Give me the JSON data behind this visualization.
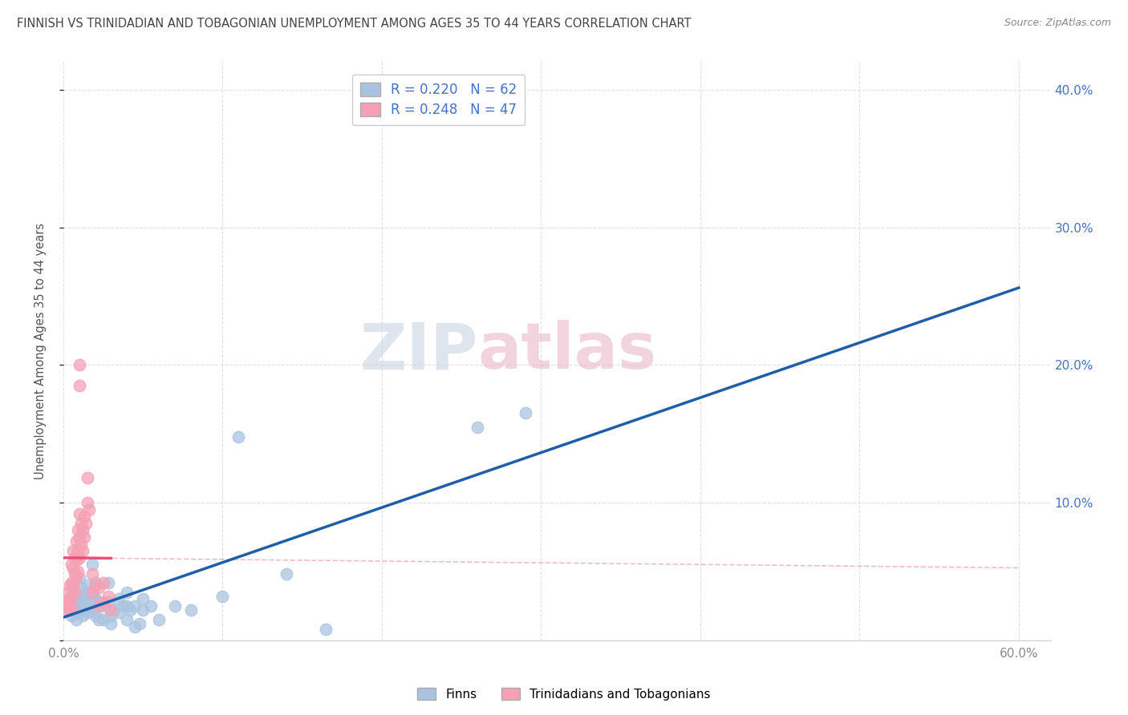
{
  "title": "FINNISH VS TRINIDADIAN AND TOBAGONIAN UNEMPLOYMENT AMONG AGES 35 TO 44 YEARS CORRELATION CHART",
  "source": "Source: ZipAtlas.com",
  "ylabel": "Unemployment Among Ages 35 to 44 years",
  "xlim": [
    0.0,
    0.62
  ],
  "ylim": [
    0.0,
    0.42
  ],
  "xticks": [
    0.0,
    0.1,
    0.2,
    0.3,
    0.4,
    0.5,
    0.6
  ],
  "yticks": [
    0.0,
    0.1,
    0.2,
    0.3,
    0.4
  ],
  "xticklabels_show": [
    "0.0%",
    "60.0%"
  ],
  "xticks_show_pos": [
    0.0,
    0.6
  ],
  "yticklabels_right": [
    "10.0%",
    "20.0%",
    "30.0%",
    "40.0%"
  ],
  "yticks_right_pos": [
    0.1,
    0.2,
    0.3,
    0.4
  ],
  "legend_labels": [
    "Finns",
    "Trinidadians and Tobagonians"
  ],
  "finn_R": "0.220",
  "finn_N": "62",
  "tnt_R": "0.248",
  "tnt_N": "47",
  "finn_color": "#aac4e0",
  "tnt_color": "#f5a0b5",
  "finn_line_color": "#1f5faa",
  "tnt_line_color": "#e8507a",
  "tnt_dash_color": "#e8a0b8",
  "finn_scatter": [
    [
      0.003,
      0.028
    ],
    [
      0.004,
      0.022
    ],
    [
      0.005,
      0.03
    ],
    [
      0.005,
      0.018
    ],
    [
      0.006,
      0.032
    ],
    [
      0.006,
      0.025
    ],
    [
      0.007,
      0.02
    ],
    [
      0.008,
      0.028
    ],
    [
      0.008,
      0.015
    ],
    [
      0.009,
      0.035
    ],
    [
      0.009,
      0.025
    ],
    [
      0.01,
      0.045
    ],
    [
      0.01,
      0.03
    ],
    [
      0.01,
      0.022
    ],
    [
      0.011,
      0.038
    ],
    [
      0.012,
      0.025
    ],
    [
      0.012,
      0.018
    ],
    [
      0.013,
      0.032
    ],
    [
      0.013,
      0.022
    ],
    [
      0.014,
      0.028
    ],
    [
      0.015,
      0.04
    ],
    [
      0.015,
      0.03
    ],
    [
      0.015,
      0.02
    ],
    [
      0.016,
      0.035
    ],
    [
      0.017,
      0.025
    ],
    [
      0.018,
      0.055
    ],
    [
      0.018,
      0.032
    ],
    [
      0.018,
      0.022
    ],
    [
      0.02,
      0.042
    ],
    [
      0.02,
      0.03
    ],
    [
      0.02,
      0.018
    ],
    [
      0.022,
      0.028
    ],
    [
      0.022,
      0.015
    ],
    [
      0.025,
      0.025
    ],
    [
      0.025,
      0.015
    ],
    [
      0.028,
      0.042
    ],
    [
      0.028,
      0.028
    ],
    [
      0.03,
      0.018
    ],
    [
      0.03,
      0.012
    ],
    [
      0.032,
      0.022
    ],
    [
      0.035,
      0.03
    ],
    [
      0.035,
      0.02
    ],
    [
      0.038,
      0.025
    ],
    [
      0.04,
      0.035
    ],
    [
      0.04,
      0.025
    ],
    [
      0.04,
      0.015
    ],
    [
      0.042,
      0.022
    ],
    [
      0.045,
      0.01
    ],
    [
      0.045,
      0.025
    ],
    [
      0.048,
      0.012
    ],
    [
      0.05,
      0.03
    ],
    [
      0.05,
      0.022
    ],
    [
      0.055,
      0.025
    ],
    [
      0.06,
      0.015
    ],
    [
      0.07,
      0.025
    ],
    [
      0.08,
      0.022
    ],
    [
      0.1,
      0.032
    ],
    [
      0.11,
      0.148
    ],
    [
      0.14,
      0.048
    ],
    [
      0.165,
      0.008
    ],
    [
      0.26,
      0.155
    ],
    [
      0.29,
      0.165
    ]
  ],
  "tnt_scatter": [
    [
      0.002,
      0.028
    ],
    [
      0.002,
      0.022
    ],
    [
      0.003,
      0.035
    ],
    [
      0.003,
      0.025
    ],
    [
      0.004,
      0.04
    ],
    [
      0.004,
      0.03
    ],
    [
      0.004,
      0.022
    ],
    [
      0.005,
      0.055
    ],
    [
      0.005,
      0.042
    ],
    [
      0.005,
      0.032
    ],
    [
      0.005,
      0.025
    ],
    [
      0.006,
      0.065
    ],
    [
      0.006,
      0.052
    ],
    [
      0.006,
      0.04
    ],
    [
      0.007,
      0.06
    ],
    [
      0.007,
      0.048
    ],
    [
      0.007,
      0.035
    ],
    [
      0.008,
      0.072
    ],
    [
      0.008,
      0.058
    ],
    [
      0.008,
      0.045
    ],
    [
      0.009,
      0.08
    ],
    [
      0.009,
      0.065
    ],
    [
      0.009,
      0.05
    ],
    [
      0.01,
      0.092
    ],
    [
      0.01,
      0.075
    ],
    [
      0.01,
      0.06
    ],
    [
      0.01,
      0.2
    ],
    [
      0.01,
      0.185
    ],
    [
      0.011,
      0.085
    ],
    [
      0.011,
      0.07
    ],
    [
      0.012,
      0.08
    ],
    [
      0.012,
      0.065
    ],
    [
      0.013,
      0.09
    ],
    [
      0.013,
      0.075
    ],
    [
      0.014,
      0.085
    ],
    [
      0.015,
      0.1
    ],
    [
      0.015,
      0.118
    ],
    [
      0.016,
      0.095
    ],
    [
      0.018,
      0.048
    ],
    [
      0.018,
      0.035
    ],
    [
      0.02,
      0.04
    ],
    [
      0.022,
      0.038
    ],
    [
      0.022,
      0.025
    ],
    [
      0.025,
      0.042
    ],
    [
      0.025,
      0.028
    ],
    [
      0.028,
      0.032
    ],
    [
      0.03,
      0.022
    ]
  ],
  "watermark_zip": "ZIP",
  "watermark_atlas": "atlas",
  "background_color": "#ffffff",
  "grid_color": "#cccccc",
  "title_color": "#444444",
  "axis_label_color": "#555555",
  "tick_right_color": "#4472c4",
  "tick_left_color": "#888888"
}
